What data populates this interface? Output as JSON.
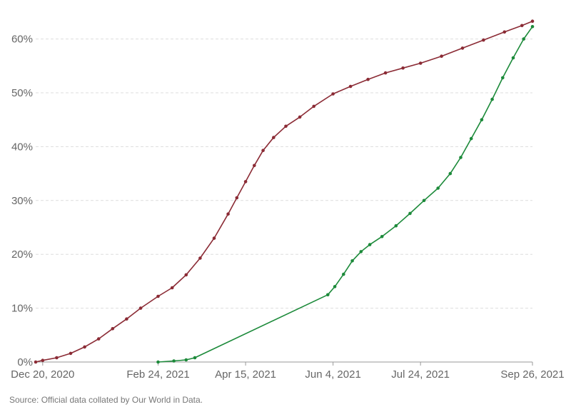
{
  "chart_data": {
    "type": "line",
    "x_tick_labels": [
      "Dec 20, 2020",
      "Feb 24, 2021",
      "Apr 15, 2021",
      "Jun 4, 2021",
      "Jul 24, 2021",
      "Sep 26, 2021"
    ],
    "x_tick_dates": [
      "2020-12-20",
      "2021-02-24",
      "2021-04-15",
      "2021-06-04",
      "2021-07-24",
      "2021-09-26"
    ],
    "x_range": [
      "2020-12-16",
      "2021-09-26"
    ],
    "ylim": [
      0,
      63
    ],
    "y_ticks": [
      0,
      10,
      20,
      30,
      40,
      50,
      60
    ],
    "y_tick_labels": [
      "0%",
      "10%",
      "20%",
      "30%",
      "40%",
      "50%",
      "60%"
    ],
    "grid": "horizontal dashed",
    "series": [
      {
        "color": "#8b2b35",
        "markers": true,
        "points": [
          [
            "2020-12-16",
            0.0
          ],
          [
            "2020-12-20",
            0.3
          ],
          [
            "2020-12-28",
            0.8
          ],
          [
            "2021-01-05",
            1.6
          ],
          [
            "2021-01-13",
            2.8
          ],
          [
            "2021-01-21",
            4.3
          ],
          [
            "2021-01-29",
            6.2
          ],
          [
            "2021-02-06",
            8.0
          ],
          [
            "2021-02-14",
            10.0
          ],
          [
            "2021-02-24",
            12.2
          ],
          [
            "2021-03-04",
            13.8
          ],
          [
            "2021-03-12",
            16.2
          ],
          [
            "2021-03-20",
            19.3
          ],
          [
            "2021-03-28",
            23.0
          ],
          [
            "2021-04-05",
            27.5
          ],
          [
            "2021-04-10",
            30.5
          ],
          [
            "2021-04-15",
            33.5
          ],
          [
            "2021-04-20",
            36.5
          ],
          [
            "2021-04-25",
            39.3
          ],
          [
            "2021-05-01",
            41.7
          ],
          [
            "2021-05-08",
            43.8
          ],
          [
            "2021-05-16",
            45.5
          ],
          [
            "2021-05-24",
            47.5
          ],
          [
            "2021-06-04",
            49.8
          ],
          [
            "2021-06-14",
            51.2
          ],
          [
            "2021-06-24",
            52.5
          ],
          [
            "2021-07-04",
            53.7
          ],
          [
            "2021-07-14",
            54.6
          ],
          [
            "2021-07-24",
            55.5
          ],
          [
            "2021-08-05",
            56.8
          ],
          [
            "2021-08-17",
            58.3
          ],
          [
            "2021-08-29",
            59.8
          ],
          [
            "2021-09-10",
            61.3
          ],
          [
            "2021-09-20",
            62.5
          ],
          [
            "2021-09-26",
            63.3
          ]
        ]
      },
      {
        "color": "#1c8a3a",
        "markers": true,
        "points": [
          [
            "2021-02-24",
            0.0
          ],
          [
            "2021-03-05",
            0.2
          ],
          [
            "2021-03-12",
            0.4
          ],
          [
            "2021-03-17",
            0.8
          ],
          [
            "2021-06-01",
            12.5
          ],
          [
            "2021-06-05",
            14.0
          ],
          [
            "2021-06-10",
            16.3
          ],
          [
            "2021-06-15",
            18.8
          ],
          [
            "2021-06-20",
            20.5
          ],
          [
            "2021-06-25",
            21.8
          ],
          [
            "2021-07-02",
            23.3
          ],
          [
            "2021-07-10",
            25.3
          ],
          [
            "2021-07-18",
            27.6
          ],
          [
            "2021-07-26",
            30.0
          ],
          [
            "2021-08-03",
            32.3
          ],
          [
            "2021-08-10",
            35.0
          ],
          [
            "2021-08-16",
            38.0
          ],
          [
            "2021-08-22",
            41.5
          ],
          [
            "2021-08-28",
            45.0
          ],
          [
            "2021-09-03",
            48.8
          ],
          [
            "2021-09-09",
            52.8
          ],
          [
            "2021-09-15",
            56.5
          ],
          [
            "2021-09-21",
            60.0
          ],
          [
            "2021-09-26",
            62.3
          ]
        ]
      }
    ],
    "source": "Source: Official data collated by Our World in Data."
  }
}
